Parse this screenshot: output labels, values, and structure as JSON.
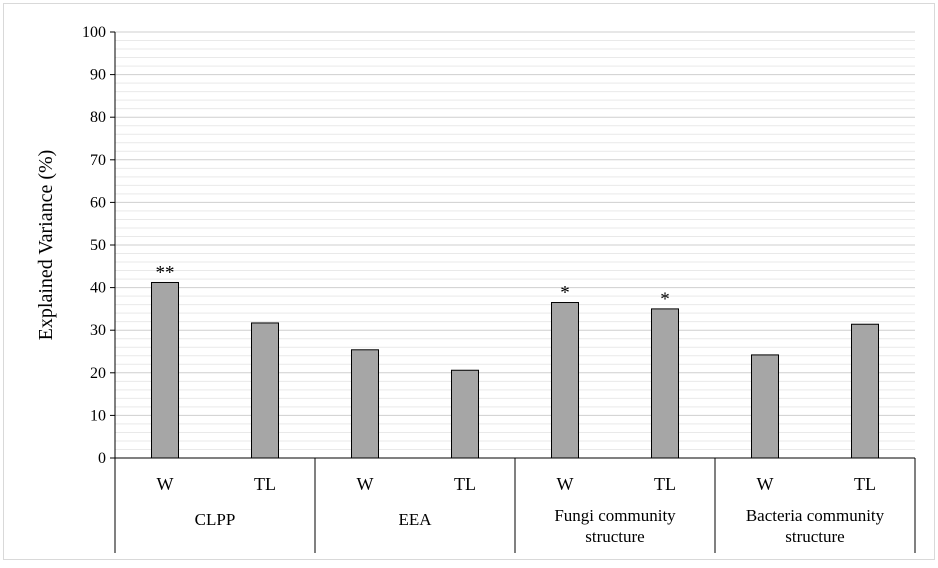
{
  "chart_data": {
    "type": "bar",
    "title": "",
    "xlabel": "",
    "ylabel": "Explained Variance (%)",
    "ylim": [
      0,
      100
    ],
    "yticks": [
      0,
      10,
      20,
      30,
      40,
      50,
      60,
      70,
      80,
      90,
      100
    ],
    "minor_grid_step": 2,
    "grid": true,
    "bar_color": "#a6a6a6",
    "groups": [
      {
        "label_lines": [
          "CLPP"
        ],
        "bars": [
          {
            "category": "W",
            "value": 41.2,
            "sig": "**"
          },
          {
            "category": "TL",
            "value": 31.7,
            "sig": ""
          }
        ]
      },
      {
        "label_lines": [
          "EEA"
        ],
        "bars": [
          {
            "category": "W",
            "value": 25.4,
            "sig": ""
          },
          {
            "category": "TL",
            "value": 20.6,
            "sig": ""
          }
        ]
      },
      {
        "label_lines": [
          "Fungi community",
          "structure"
        ],
        "bars": [
          {
            "category": "W",
            "value": 36.5,
            "sig": "*"
          },
          {
            "category": "TL",
            "value": 35.0,
            "sig": "*"
          }
        ]
      },
      {
        "label_lines": [
          "Bacteria community",
          "structure"
        ],
        "bars": [
          {
            "category": "W",
            "value": 24.2,
            "sig": ""
          },
          {
            "category": "TL",
            "value": 31.4,
            "sig": ""
          }
        ]
      }
    ]
  }
}
